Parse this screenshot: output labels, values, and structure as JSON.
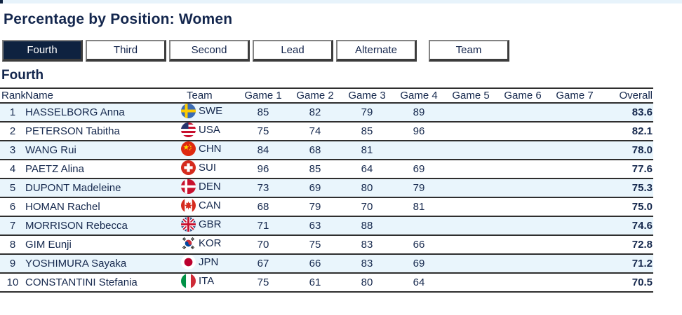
{
  "page": {
    "title": "Percentage by Position: Women",
    "section_heading": "Fourth"
  },
  "colors": {
    "accent_navy": "#13264d",
    "tab_selected_bg": "#0e2240",
    "row_alt_bg": "#e9f5fc",
    "table_border": "#2e2e2e",
    "top_strip_bg": "#e7f3fb"
  },
  "tabs": [
    {
      "label": "Fourth",
      "selected": true,
      "detached": false
    },
    {
      "label": "Third",
      "selected": false,
      "detached": false
    },
    {
      "label": "Second",
      "selected": false,
      "detached": false
    },
    {
      "label": "Lead",
      "selected": false,
      "detached": false
    },
    {
      "label": "Alternate",
      "selected": false,
      "detached": false
    },
    {
      "label": "Team",
      "selected": false,
      "detached": true
    }
  ],
  "table": {
    "columns": [
      "Rank",
      "Name",
      "Team",
      "Game 1",
      "Game 2",
      "Game 3",
      "Game 4",
      "Game 5",
      "Game 6",
      "Game 7",
      "Overall"
    ],
    "rows": [
      {
        "rank": "1",
        "name": "HASSELBORG Anna",
        "team": "SWE",
        "flag": "swe",
        "games": [
          "85",
          "82",
          "79",
          "89",
          "",
          "",
          ""
        ],
        "overall": "83.6"
      },
      {
        "rank": "2",
        "name": "PETERSON Tabitha",
        "team": "USA",
        "flag": "usa",
        "games": [
          "75",
          "74",
          "85",
          "96",
          "",
          "",
          ""
        ],
        "overall": "82.1"
      },
      {
        "rank": "3",
        "name": "WANG Rui",
        "team": "CHN",
        "flag": "chn",
        "games": [
          "84",
          "68",
          "81",
          "",
          "",
          "",
          ""
        ],
        "overall": "78.0"
      },
      {
        "rank": "4",
        "name": "PAETZ Alina",
        "team": "SUI",
        "flag": "sui",
        "games": [
          "96",
          "85",
          "64",
          "69",
          "",
          "",
          ""
        ],
        "overall": "77.6"
      },
      {
        "rank": "5",
        "name": "DUPONT Madeleine",
        "team": "DEN",
        "flag": "den",
        "games": [
          "73",
          "69",
          "80",
          "79",
          "",
          "",
          ""
        ],
        "overall": "75.3"
      },
      {
        "rank": "6",
        "name": "HOMAN Rachel",
        "team": "CAN",
        "flag": "can",
        "games": [
          "68",
          "79",
          "70",
          "81",
          "",
          "",
          ""
        ],
        "overall": "75.0"
      },
      {
        "rank": "7",
        "name": "MORRISON Rebecca",
        "team": "GBR",
        "flag": "gbr",
        "games": [
          "71",
          "63",
          "88",
          "",
          "",
          "",
          ""
        ],
        "overall": "74.6"
      },
      {
        "rank": "8",
        "name": "GIM Eunji",
        "team": "KOR",
        "flag": "kor",
        "games": [
          "70",
          "75",
          "83",
          "66",
          "",
          "",
          ""
        ],
        "overall": "72.8"
      },
      {
        "rank": "9",
        "name": "YOSHIMURA Sayaka",
        "team": "JPN",
        "flag": "jpn",
        "games": [
          "67",
          "66",
          "83",
          "69",
          "",
          "",
          ""
        ],
        "overall": "71.2"
      },
      {
        "rank": "10",
        "name": "CONSTANTINI Stefania",
        "team": "ITA",
        "flag": "ita",
        "games": [
          "75",
          "61",
          "80",
          "64",
          "",
          "",
          ""
        ],
        "overall": "70.5"
      }
    ]
  }
}
